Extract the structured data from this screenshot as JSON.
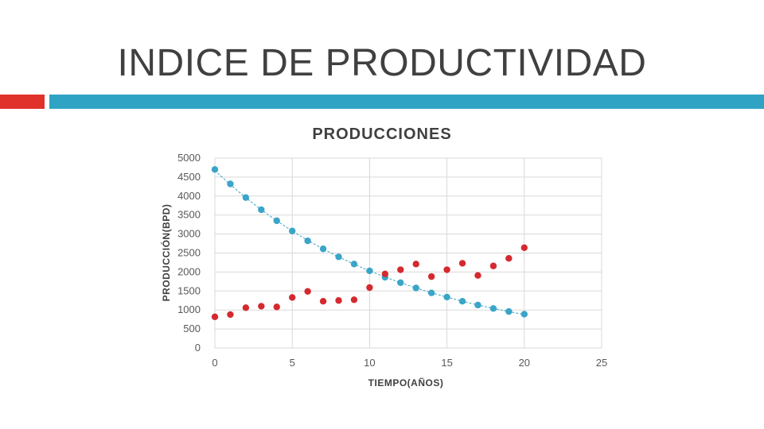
{
  "slide": {
    "title": "INDICE DE PRODUCTIVIDAD"
  },
  "colors": {
    "accent_red": "#e0312b",
    "accent_blue": "#2fa3c4",
    "series_blue": "#3aa5c8",
    "series_red": "#d42a2f"
  },
  "chart_data": {
    "type": "scatter",
    "title": "PRODUCCIONES",
    "xlabel": "TIEMPO(AÑOS)",
    "ylabel": "PRODUCCIÓN(BPD)",
    "xlim": [
      0,
      25
    ],
    "ylim": [
      0,
      5000
    ],
    "xticks": [
      0,
      5,
      10,
      15,
      20,
      25
    ],
    "yticks": [
      0,
      500,
      1000,
      1500,
      2000,
      2500,
      3000,
      3500,
      4000,
      4500,
      5000
    ],
    "grid": true,
    "legend": "none",
    "series": [
      {
        "color": "#3aa5c8",
        "trendline": "exponential",
        "x": [
          0,
          1,
          2,
          3,
          4,
          5,
          6,
          7,
          8,
          9,
          10,
          11,
          12,
          13,
          14,
          15,
          16,
          17,
          18,
          19,
          20
        ],
        "y": [
          4700,
          4320,
          3960,
          3640,
          3350,
          3080,
          2820,
          2610,
          2400,
          2210,
          2030,
          1860,
          1720,
          1580,
          1450,
          1340,
          1230,
          1130,
          1040,
          960,
          890
        ]
      },
      {
        "color": "#d42a2f",
        "trendline": "none",
        "x": [
          0,
          1,
          2,
          3,
          4,
          5,
          6,
          7,
          8,
          9,
          10,
          11,
          12,
          13,
          14,
          15,
          16,
          17,
          18,
          19,
          20
        ],
        "y": [
          820,
          880,
          1060,
          1100,
          1080,
          1330,
          1490,
          1230,
          1250,
          1270,
          1590,
          1950,
          2060,
          2210,
          1880,
          2060,
          2230,
          1910,
          2160,
          2360,
          2640
        ]
      }
    ]
  }
}
